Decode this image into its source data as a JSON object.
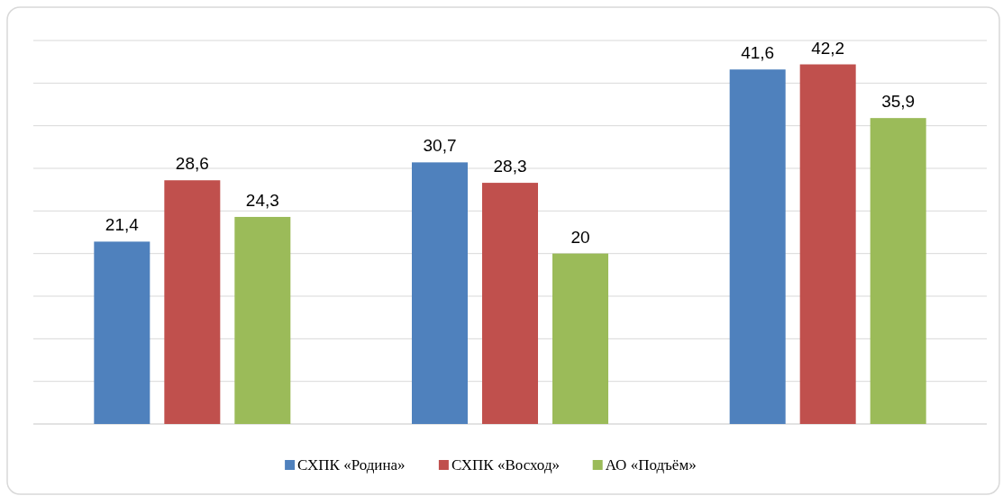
{
  "chart_data": {
    "type": "bar",
    "categories": [
      null,
      null,
      null
    ],
    "series": [
      {
        "name": "СХПК «Родина»",
        "color": "#4f81bd",
        "values": [
          21.4,
          30.7,
          41.6
        ],
        "value_labels": [
          "21,4",
          "30,7",
          "41,6"
        ]
      },
      {
        "name": "СХПК «Восход»",
        "color": "#c0504d",
        "values": [
          28.6,
          28.3,
          42.2
        ],
        "value_labels": [
          "28,6",
          "28,3",
          "42,2"
        ]
      },
      {
        "name": "АО  «Подъём»",
        "color": "#9bbb59",
        "values": [
          24.3,
          20,
          35.9
        ],
        "value_labels": [
          "24,3",
          "20",
          "35,9"
        ]
      }
    ],
    "ylim": [
      0,
      45
    ],
    "yticks": [
      {
        "value": 0,
        "label": null
      },
      {
        "value": 5,
        "label": null
      },
      {
        "value": 10,
        "label": null
      },
      {
        "value": 15,
        "label": null
      },
      {
        "value": 20,
        "label": null
      },
      {
        "value": 25,
        "label": null
      },
      {
        "value": 30,
        "label": null
      },
      {
        "value": 35,
        "label": null
      },
      {
        "value": 40,
        "label": null
      },
      {
        "value": 45,
        "label": null
      }
    ],
    "grid": "y",
    "legend": "bottom"
  }
}
